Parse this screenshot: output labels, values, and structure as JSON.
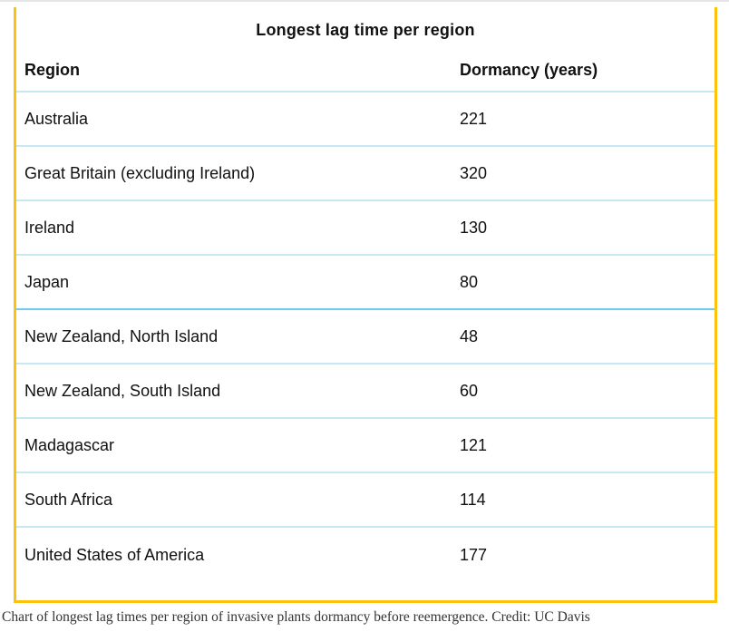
{
  "chart_data": {
    "type": "table",
    "title": "Longest lag time per region",
    "columns": [
      "Region",
      "Dormancy (years)"
    ],
    "categories": [
      "Australia",
      "Great Britain (excluding Ireland)",
      "Ireland",
      "Japan",
      "New Zealand, North Island",
      "New Zealand, South Island",
      "Madagascar",
      "South Africa",
      "United States of America"
    ],
    "values": [
      221,
      320,
      130,
      80,
      48,
      60,
      121,
      114,
      177
    ],
    "xlabel": "Region",
    "ylabel": "Dormancy (years)",
    "legend": "none",
    "grid": "horizontal row dividers only"
  },
  "figure": {
    "title": "Longest lag time per region",
    "header": {
      "region": "Region",
      "dormancy": "Dormancy (years)"
    },
    "rows": [
      {
        "region": "Australia",
        "dormancy": "221"
      },
      {
        "region": "Great Britain (excluding Ireland)",
        "dormancy": "320"
      },
      {
        "region": "Ireland",
        "dormancy": "130"
      },
      {
        "region": "Japan",
        "dormancy": "80"
      },
      {
        "region": "New Zealand, North Island",
        "dormancy": "48"
      },
      {
        "region": "New Zealand, South Island",
        "dormancy": "60"
      },
      {
        "region": "Madagascar",
        "dormancy": "121"
      },
      {
        "region": "South Africa",
        "dormancy": "114"
      },
      {
        "region": "United States of America",
        "dormancy": "177"
      }
    ]
  },
  "caption": {
    "text": "Chart of longest lag times per region of invasive plants dormancy before reemergence. Credit: UC Davis"
  },
  "colors": {
    "accent_border": "#fcc20e",
    "row_divider": "#c6e8f5",
    "row_divider_strong": "#6fccf1",
    "top_rule": "#e6e6e6",
    "text": "#111111",
    "caption_text": "#333333"
  }
}
